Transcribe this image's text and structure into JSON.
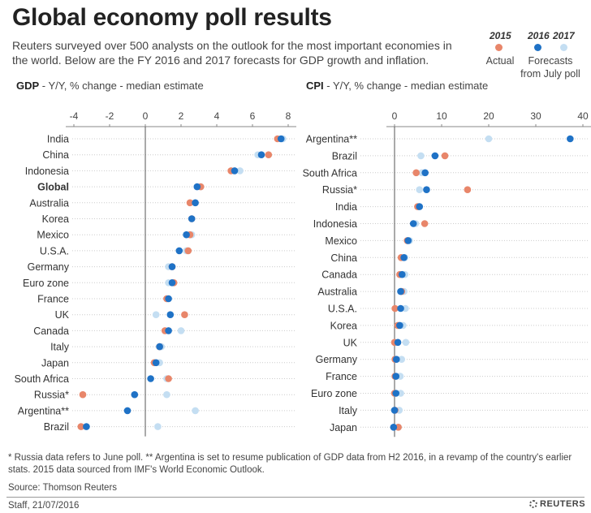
{
  "title": "Global economy poll results",
  "intro": "Reuters surveyed over 500 analysts on the outlook for the most important economies in the world. Below are the FY 2016 and 2017 forecasts for GDP growth and inflation.",
  "legend": {
    "y2015": "2015",
    "y2016": "2016",
    "y2017": "2017",
    "actual_label": "Actual",
    "forecast_label_1": "Forecasts",
    "forecast_label_2": "from July poll"
  },
  "colors": {
    "y2015": "#e8866a",
    "y2016": "#1f72c6",
    "y2017": "#c4def2",
    "axis": "#555555",
    "grid": "#cccccc"
  },
  "panels": {
    "gdp": {
      "title_bold": "GDP",
      "title_rest": " - Y/Y, % change - median estimate"
    },
    "cpi": {
      "title_bold": "CPI",
      "title_rest": " - Y/Y, % change - median estimate"
    }
  },
  "chart_data": [
    {
      "type": "scatter",
      "title": "GDP - Y/Y, % change - median estimate",
      "xlim": [
        -4.5,
        8.5
      ],
      "xticks": [
        -4,
        -2,
        0,
        2,
        4,
        6,
        8
      ],
      "grid": true,
      "categories": [
        "India",
        "China",
        "Indonesia",
        "Global",
        "Australia",
        "Korea",
        "Mexico",
        "U.S.A.",
        "Germany",
        "Euro zone",
        "France",
        "UK",
        "Canada",
        "Italy",
        "Japan",
        "South Africa",
        "Russia*",
        "Argentina**",
        "Brazil"
      ],
      "bold_category": "Global",
      "series": [
        {
          "name": "2015",
          "values": [
            7.4,
            6.9,
            4.8,
            3.1,
            2.5,
            2.6,
            2.5,
            2.4,
            1.5,
            1.6,
            1.2,
            2.2,
            1.1,
            0.8,
            0.5,
            1.3,
            -3.5,
            null,
            -3.6
          ]
        },
        {
          "name": "2016",
          "values": [
            7.6,
            6.5,
            5.0,
            2.9,
            2.8,
            2.6,
            2.3,
            1.9,
            1.5,
            1.5,
            1.3,
            1.4,
            1.3,
            0.8,
            0.6,
            0.3,
            -0.6,
            -1.0,
            -3.3
          ]
        },
        {
          "name": "2017",
          "values": [
            7.7,
            6.3,
            5.3,
            3.1,
            2.8,
            2.6,
            2.6,
            2.3,
            1.3,
            1.3,
            1.2,
            0.6,
            2.0,
            0.9,
            0.8,
            1.2,
            1.2,
            2.8,
            0.7
          ]
        }
      ]
    },
    {
      "type": "scatter",
      "title": "CPI - Y/Y, % change - median estimate",
      "xlim": [
        -2,
        41
      ],
      "xticks": [
        0,
        10,
        20,
        30,
        40
      ],
      "grid": true,
      "categories": [
        "Argentina**",
        "Brazil",
        "South Africa",
        "Russia*",
        "India",
        "Indonesia",
        "Mexico",
        "China",
        "Canada",
        "Australia",
        "U.S.A.",
        "Korea",
        "UK",
        "Germany",
        "France",
        "Euro zone",
        "Italy",
        "Japan"
      ],
      "series": [
        {
          "name": "2015",
          "values": [
            null,
            10.7,
            4.6,
            15.5,
            4.9,
            6.4,
            2.7,
            1.4,
            1.1,
            1.5,
            0.1,
            0.7,
            0.0,
            0.1,
            0.1,
            0.0,
            0.1,
            0.8
          ]
        },
        {
          "name": "2016",
          "values": [
            37.3,
            8.6,
            6.5,
            6.8,
            5.3,
            4.0,
            2.9,
            2.0,
            1.6,
            1.3,
            1.3,
            1.1,
            0.7,
            0.4,
            0.3,
            0.3,
            0.0,
            -0.2
          ]
        },
        {
          "name": "2017",
          "values": [
            20.0,
            5.6,
            5.8,
            5.3,
            5.1,
            4.5,
            3.2,
            2.2,
            2.2,
            2.0,
            2.3,
            1.8,
            2.4,
            1.5,
            1.2,
            1.3,
            1.0,
            0.8
          ]
        }
      ]
    }
  ],
  "footnote": "* Russia data refers to June poll. ** Argentina is set to resume publication of GDP data from H2 2016, in a revamp of the country's earlier stats. 2015 data sourced from IMF's World Economic Outlook.",
  "source": "Source: Thomson Reuters",
  "staff": "Staff, 21/07/2016",
  "logo": "REUTERS"
}
